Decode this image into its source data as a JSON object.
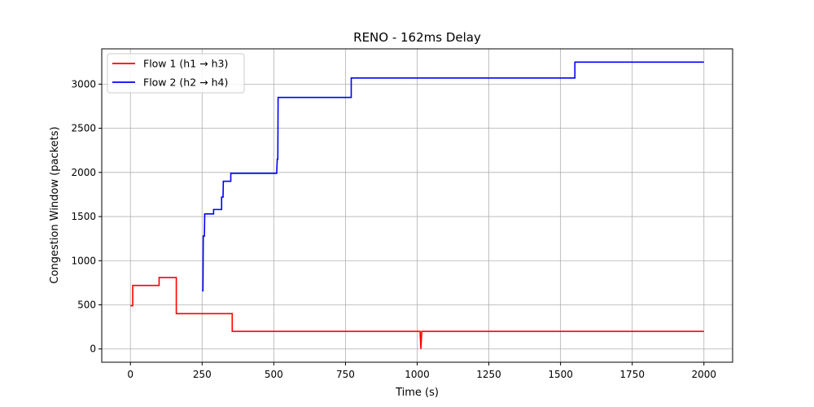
{
  "chart_data": {
    "type": "line",
    "title": "RENO - 162ms Delay",
    "xlabel": "Time (s)",
    "ylabel": "Congestion Window (packets)",
    "xlim": [
      -100,
      2100
    ],
    "ylim": [
      -150,
      3400
    ],
    "xticks": [
      0,
      250,
      500,
      750,
      1000,
      1250,
      1500,
      1750,
      2000
    ],
    "yticks": [
      0,
      500,
      1000,
      1500,
      2000,
      2500,
      3000
    ],
    "grid": true,
    "legend_position": "top-left",
    "series": [
      {
        "name": "Flow 1 (h1 → h3)",
        "color": "#ff0000",
        "points": [
          [
            0,
            490
          ],
          [
            8,
            490
          ],
          [
            8,
            720
          ],
          [
            100,
            720
          ],
          [
            100,
            810
          ],
          [
            160,
            810
          ],
          [
            160,
            400
          ],
          [
            355,
            400
          ],
          [
            355,
            200
          ],
          [
            1010,
            200
          ],
          [
            1013,
            0
          ],
          [
            1016,
            200
          ],
          [
            2000,
            200
          ]
        ]
      },
      {
        "name": "Flow 2 (h2 → h4)",
        "color": "#0000ff",
        "points": [
          [
            250,
            660
          ],
          [
            253,
            660
          ],
          [
            254,
            1280
          ],
          [
            258,
            1280
          ],
          [
            259,
            1530
          ],
          [
            290,
            1530
          ],
          [
            290,
            1580
          ],
          [
            318,
            1580
          ],
          [
            318,
            1720
          ],
          [
            323,
            1720
          ],
          [
            324,
            1900
          ],
          [
            350,
            1900
          ],
          [
            350,
            1990
          ],
          [
            510,
            1990
          ],
          [
            512,
            2150
          ],
          [
            514,
            2150
          ],
          [
            515,
            2850
          ],
          [
            770,
            2850
          ],
          [
            770,
            3070
          ],
          [
            1550,
            3070
          ],
          [
            1550,
            3250
          ],
          [
            2000,
            3250
          ]
        ]
      }
    ]
  }
}
